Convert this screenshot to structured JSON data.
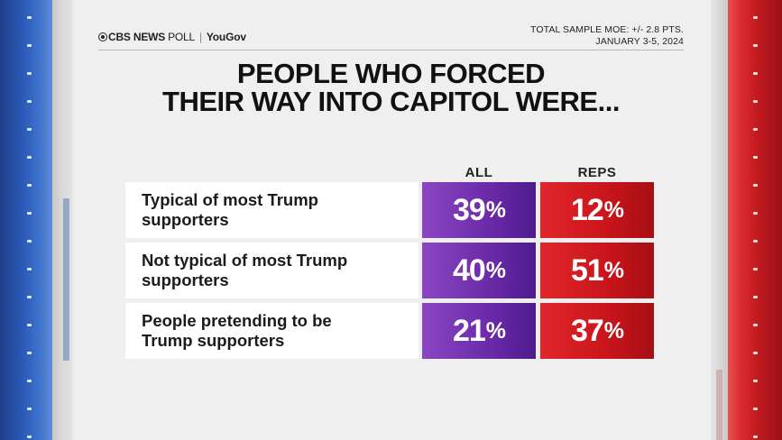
{
  "brand": {
    "network": "CBS NEWS",
    "poll": "POLL",
    "separator": "|",
    "partner": "YouGov"
  },
  "meta": {
    "moe": "TOTAL SAMPLE MOE: +/- 2.8 PTS.",
    "dates": "JANUARY 3-5, 2024"
  },
  "title": {
    "line1": "PEOPLE WHO FORCED",
    "line2": "THEIR WAY INTO CAPITOL WERE..."
  },
  "colors": {
    "all": "#6a2aa8",
    "reps": "#c8151b"
  },
  "chart_data": {
    "type": "table",
    "title": "PEOPLE WHO FORCED THEIR WAY INTO CAPITOL WERE...",
    "columns": [
      "ALL",
      "REPS"
    ],
    "categories": [
      "Typical of most Trump supporters",
      "Not typical of most Trump supporters",
      "People pretending to be Trump supporters"
    ],
    "rows": [
      {
        "label_line1": "Typical of most Trump",
        "label_line2": "supporters",
        "all": 39,
        "reps": 12
      },
      {
        "label_line1": "Not typical of most Trump",
        "label_line2": "supporters",
        "all": 40,
        "reps": 51
      },
      {
        "label_line1": "People pretending to be",
        "label_line2": "Trump supporters",
        "all": 21,
        "reps": 37
      }
    ],
    "series": [
      {
        "name": "ALL",
        "values": [
          39,
          40,
          21
        ]
      },
      {
        "name": "REPS",
        "values": [
          12,
          51,
          37
        ]
      }
    ],
    "unit": "%"
  }
}
